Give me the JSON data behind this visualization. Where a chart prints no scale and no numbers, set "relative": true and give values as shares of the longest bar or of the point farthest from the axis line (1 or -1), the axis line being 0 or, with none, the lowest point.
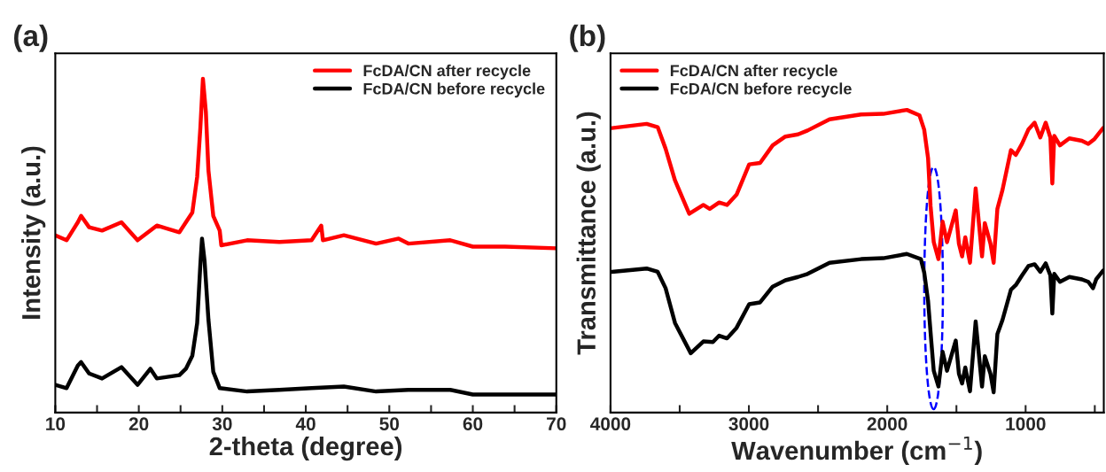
{
  "chart_data": [
    {
      "type": "line",
      "title": "(a)",
      "xlabel": "2-theta (degree)",
      "ylabel": "Intensity (a.u.)",
      "relative": true,
      "legend": "top right",
      "tick_labels": "x",
      "xlim": [
        10,
        70
      ],
      "xticks": [
        10,
        {
          "value": 15,
          "label": null
        },
        20,
        {
          "value": 25,
          "label": null
        },
        30,
        {
          "value": 35,
          "label": null
        },
        40,
        {
          "value": 45,
          "label": null
        },
        50,
        {
          "value": 55,
          "label": null
        },
        60,
        {
          "value": 65,
          "label": null
        },
        70
      ],
      "series": [
        {
          "name": "FcDA/CN after recycle",
          "color": "#ff0000",
          "x": [
            10.0,
            11.35,
            12.7,
            13.09,
            14.05,
            15.6,
            17.92,
            19.85,
            22.16,
            24.86,
            25.64,
            26.41,
            26.99,
            27.37,
            27.68,
            28.03,
            28.34,
            28.92,
            29.69,
            29.88,
            32.97,
            36.83,
            40.69,
            41.85,
            42.05,
            44.56,
            48.42,
            51.12,
            52.28,
            57.3,
            60.0,
            63.86,
            70.0
          ],
          "values": [
            0.531,
            0.516,
            0.57,
            0.589,
            0.555,
            0.545,
            0.57,
            0.516,
            0.56,
            0.54,
            0.57,
            0.599,
            0.706,
            0.852,
            1.0,
            0.901,
            0.725,
            0.589,
            0.545,
            0.501,
            0.516,
            0.511,
            0.516,
            0.56,
            0.516,
            0.531,
            0.506,
            0.521,
            0.506,
            0.516,
            0.497,
            0.497,
            0.492
          ]
        },
        {
          "name": "FcDA/CN before recycle",
          "color": "#000000",
          "x": [
            10.0,
            11.35,
            12.7,
            13.09,
            14.05,
            15.6,
            17.92,
            19.85,
            21.39,
            22.16,
            24.86,
            25.64,
            26.41,
            26.99,
            27.37,
            27.57,
            27.88,
            28.34,
            28.92,
            29.69,
            32.97,
            36.83,
            40.69,
            44.56,
            48.42,
            52.28,
            57.3,
            60.0,
            63.86,
            70.0
          ],
          "values": [
            0.083,
            0.073,
            0.141,
            0.151,
            0.117,
            0.102,
            0.136,
            0.083,
            0.131,
            0.102,
            0.112,
            0.131,
            0.17,
            0.268,
            0.443,
            0.521,
            0.453,
            0.278,
            0.122,
            0.073,
            0.063,
            0.068,
            0.073,
            0.078,
            0.063,
            0.068,
            0.068,
            0.054,
            0.054,
            0.054
          ]
        }
      ]
    },
    {
      "type": "line",
      "title": "(b)",
      "xlabel": "Wavenumber (cm$^{−1}$)",
      "ylabel": "Transmittance (a.u.)",
      "relative": true,
      "legend": "top left",
      "tick_labels": "x",
      "xlim": [
        4000,
        435
      ],
      "xticks": [
        4000,
        {
          "value": 3500,
          "label": null
        },
        3000,
        {
          "value": 2500,
          "label": null
        },
        2000,
        {
          "value": 1500,
          "label": null
        },
        1000,
        {
          "value": 500,
          "label": null
        }
      ],
      "series": [
        {
          "name": "FcDA/CN after recycle",
          "color": "#ff0000",
          "x": [
            3990,
            3739,
            3659,
            3602,
            3534,
            3431,
            3329,
            3283,
            3215,
            3158,
            3089,
            2998,
            2919,
            2828,
            2736,
            2645,
            2576,
            2417,
            2189,
            2029,
            1858,
            1767,
            1733,
            1705,
            1687,
            1664,
            1630,
            1600,
            1568,
            1505,
            1482,
            1459,
            1436,
            1402,
            1361,
            1315,
            1295,
            1254,
            1231,
            1204,
            1167,
            1106,
            1071,
            1026,
            980,
            935,
            894,
            855,
            821,
            807,
            793,
            752,
            684,
            593,
            547,
            502,
            440
          ],
          "values": [
            0.94,
            0.954,
            0.943,
            0.872,
            0.767,
            0.657,
            0.686,
            0.673,
            0.694,
            0.686,
            0.72,
            0.82,
            0.825,
            0.883,
            0.912,
            0.919,
            0.932,
            0.969,
            0.985,
            0.987,
            1.0,
            0.982,
            0.935,
            0.841,
            0.683,
            0.563,
            0.507,
            0.631,
            0.563,
            0.668,
            0.558,
            0.516,
            0.579,
            0.495,
            0.741,
            0.516,
            0.626,
            0.558,
            0.495,
            0.673,
            0.736,
            0.867,
            0.851,
            0.888,
            0.935,
            0.958,
            0.909,
            0.958,
            0.909,
            0.757,
            0.914,
            0.883,
            0.906,
            0.898,
            0.888,
            0.904,
            0.94
          ]
        },
        {
          "name": "FcDA/CN before recycle",
          "color": "#000000",
          "x": [
            3990,
            3739,
            3659,
            3602,
            3534,
            3420,
            3329,
            3260,
            3215,
            3158,
            3089,
            2998,
            2919,
            2828,
            2736,
            2645,
            2576,
            2417,
            2189,
            2029,
            1858,
            1757,
            1733,
            1705,
            1683,
            1664,
            1630,
            1600,
            1568,
            1505,
            1482,
            1459,
            1436,
            1402,
            1361,
            1315,
            1295,
            1254,
            1231,
            1204,
            1167,
            1106,
            1071,
            1026,
            980,
            935,
            894,
            855,
            821,
            807,
            793,
            752,
            684,
            593,
            547,
            513,
            490,
            440
          ],
          "values": [
            0.465,
            0.476,
            0.465,
            0.411,
            0.296,
            0.196,
            0.235,
            0.233,
            0.254,
            0.245,
            0.28,
            0.358,
            0.364,
            0.416,
            0.437,
            0.448,
            0.458,
            0.495,
            0.507,
            0.51,
            0.524,
            0.507,
            0.463,
            0.369,
            0.243,
            0.138,
            0.086,
            0.201,
            0.138,
            0.238,
            0.128,
            0.096,
            0.149,
            0.07,
            0.301,
            0.086,
            0.186,
            0.128,
            0.067,
            0.259,
            0.306,
            0.406,
            0.421,
            0.453,
            0.484,
            0.49,
            0.465,
            0.493,
            0.453,
            0.327,
            0.458,
            0.432,
            0.448,
            0.44,
            0.432,
            0.411,
            0.44,
            0.469
          ]
        }
      ]
    }
  ]
}
